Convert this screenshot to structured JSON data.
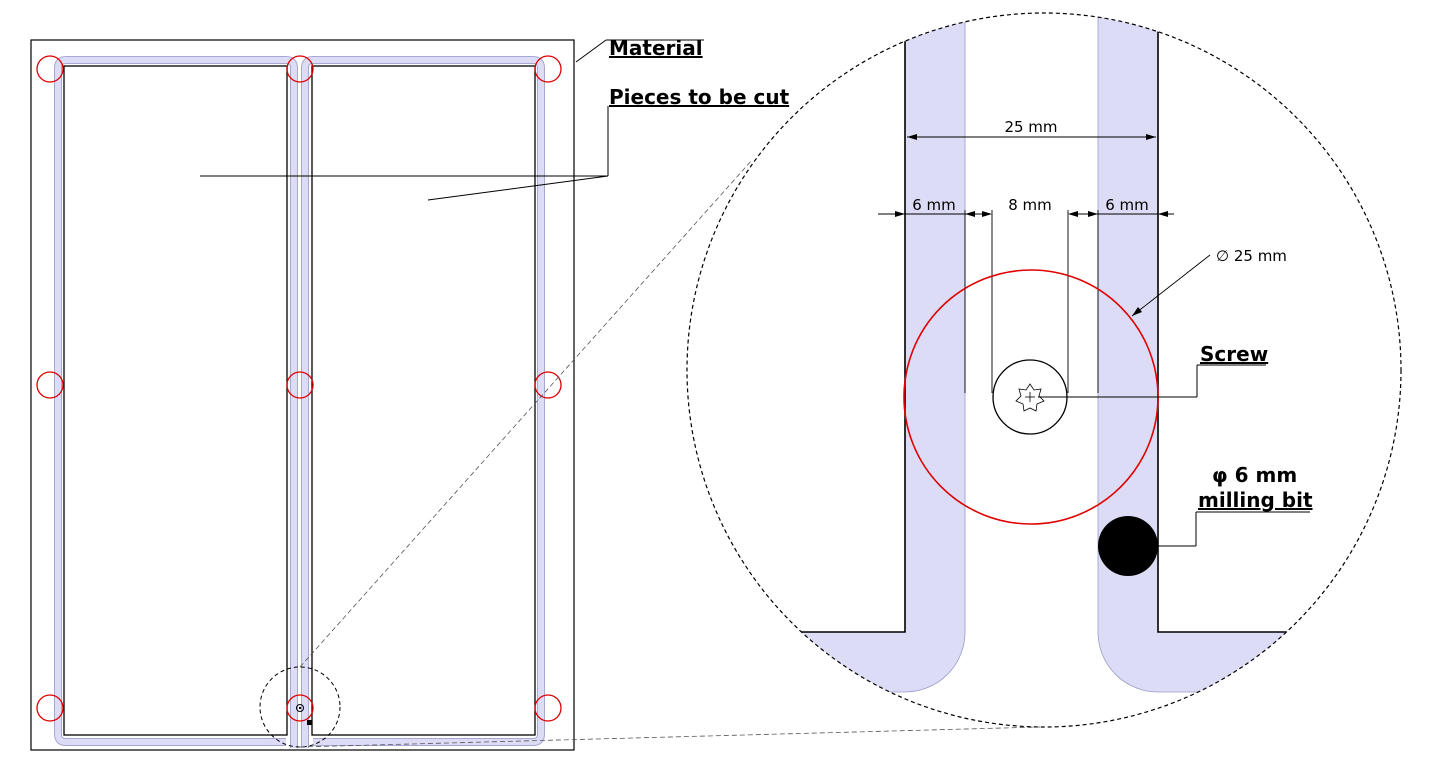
{
  "labels": {
    "material": "Material",
    "pieces": "Pieces to be cut",
    "screw": "Screw",
    "bit_line1": "φ 6 mm",
    "bit_line2": "milling bit"
  },
  "dimensions": {
    "overall_width": "25 mm",
    "left_groove": "6 mm",
    "gap": "8 mm",
    "right_groove": "6 mm",
    "clamp_diameter": "∅ 25 mm"
  },
  "colors": {
    "groove_fill": "#dcdcf6",
    "screw_clamp": "#e00000",
    "outline": "#000000"
  }
}
